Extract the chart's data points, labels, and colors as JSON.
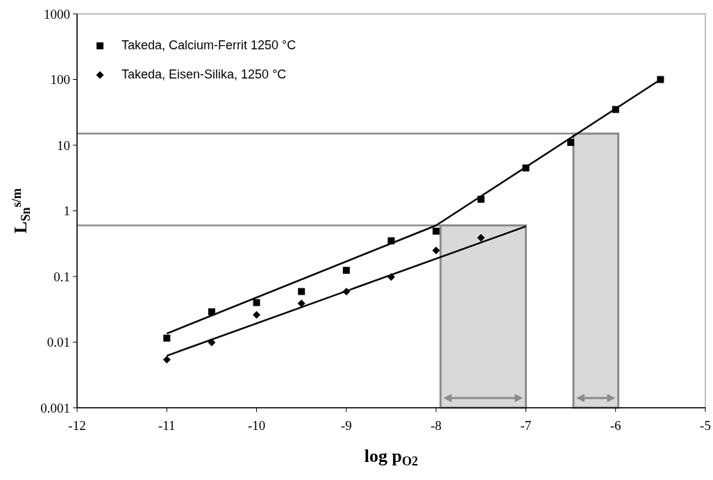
{
  "chart_data": {
    "type": "scatter",
    "xlabel": "log p$_{O2}$",
    "ylabel": "L$_{Sn}$$^{s/m}$",
    "log": "y",
    "grid": false,
    "legend": "top left",
    "xlim": [
      -12,
      -5
    ],
    "xticks": [
      -12,
      -11,
      -10,
      -9,
      -8,
      -7,
      -6,
      -5
    ],
    "ylim": [
      0.001,
      1000
    ],
    "yticks": [
      0.001,
      0.01,
      0.1,
      1,
      10,
      100,
      1000
    ],
    "series": [
      {
        "type": "area",
        "color": "#d9d9d9",
        "x": [
          -7.95,
          -7
        ],
        "values": [
          0.6,
          0.6
        ]
      },
      {
        "type": "area",
        "color": "#d9d9d9",
        "x": [
          -6.47,
          -5.97
        ],
        "values": [
          15,
          15
        ]
      },
      {
        "type": "line",
        "color": "#8c8c8c",
        "x": [
          -12,
          -7
        ],
        "values": [
          0.6,
          0.6
        ]
      },
      {
        "type": "line",
        "color": "#8c8c8c",
        "x": [
          -12,
          -5.97
        ],
        "values": [
          15,
          15
        ]
      },
      {
        "type": "line",
        "color": "#000000",
        "x": [
          -11,
          -8,
          -5.5
        ],
        "values": [
          0.0135,
          0.6,
          100
        ]
      },
      {
        "type": "line",
        "color": "#000000",
        "x": [
          -11,
          -7
        ],
        "values": [
          0.0062,
          0.58
        ]
      },
      {
        "name": "Takeda, Calcium-Ferrit 1250 °C",
        "marker": "square",
        "color": "#000000",
        "x": [
          -11,
          -10.5,
          -10,
          -9.5,
          -9,
          -8.5,
          -8,
          -7.5,
          -7,
          -6.5,
          -6,
          -5.5
        ],
        "values": [
          0.0115,
          0.029,
          0.04,
          0.059,
          0.124,
          0.35,
          0.49,
          1.5,
          4.5,
          11,
          35,
          100
        ]
      },
      {
        "name": "Takeda, Eisen-Silika, 1250 °C",
        "marker": "diamond",
        "color": "#000000",
        "x": [
          -11,
          -10.5,
          -10,
          -9.5,
          -9,
          -8.5,
          -8,
          -7.5
        ],
        "values": [
          0.0054,
          0.0099,
          0.026,
          0.039,
          0.059,
          0.098,
          0.25,
          0.39
        ]
      }
    ]
  }
}
